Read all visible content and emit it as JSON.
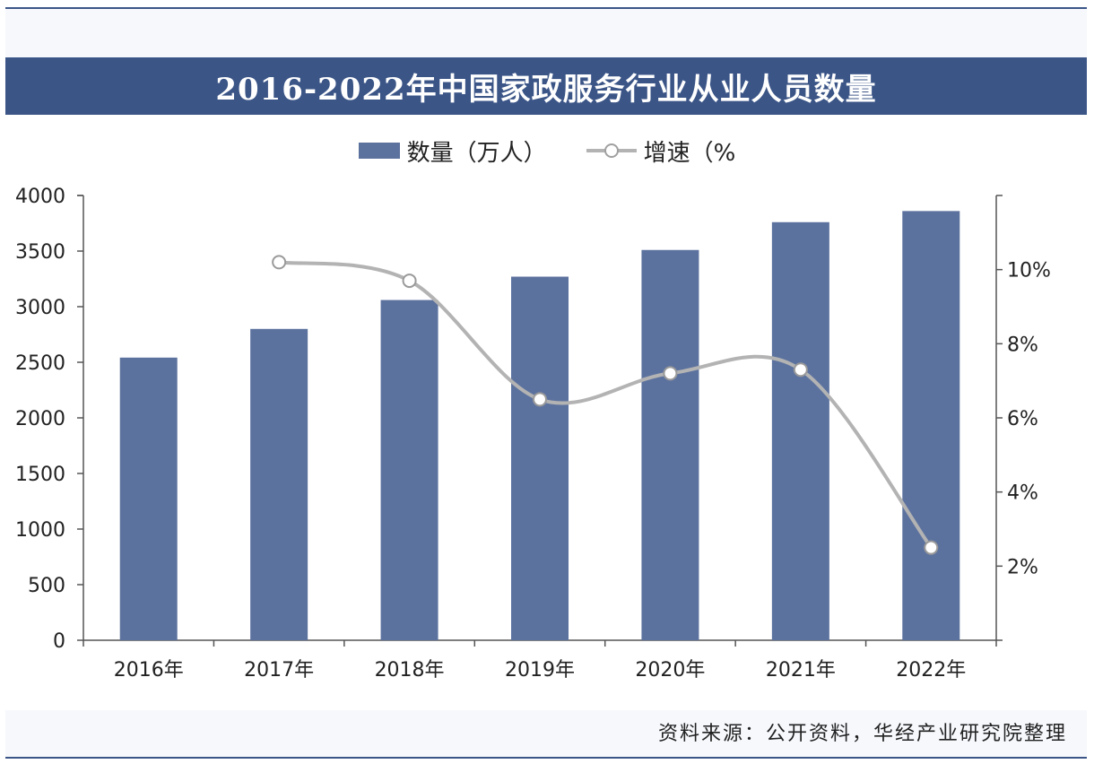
{
  "title": "2016-2022年中国家政服务行业从业人员数量",
  "legend": {
    "bar_label": "数量（万人）",
    "line_label": "增速（%"
  },
  "source": "资料来源：公开资料，华经产业研究院整理",
  "colors": {
    "bar": "#5c729e",
    "line": "#b3b3b3",
    "title_bg": "#3b5587"
  },
  "chart_data": {
    "type": "bar",
    "categories": [
      "2016年",
      "2017年",
      "2018年",
      "2019年",
      "2020年",
      "2021年",
      "2022年"
    ],
    "series": [
      {
        "name": "数量（万人）",
        "type": "bar",
        "axis": "left",
        "values": [
          2542,
          2800,
          3060,
          3270,
          3510,
          3760,
          3860
        ]
      },
      {
        "name": "增速（%",
        "type": "line",
        "axis": "right",
        "values": [
          null,
          10.2,
          9.7,
          6.5,
          7.2,
          7.3,
          2.5
        ]
      }
    ],
    "y_left": {
      "min": 0,
      "max": 4000,
      "ticks": [
        "0",
        "500",
        "1000",
        "1500",
        "2000",
        "2500",
        "3000",
        "3500",
        "4000"
      ]
    },
    "y_right": {
      "min": 0,
      "max": 12,
      "ticks": [
        "",
        "2%",
        "4%",
        "6%",
        "8%",
        "10%"
      ]
    },
    "grid": false,
    "legend_position": "top-center"
  }
}
